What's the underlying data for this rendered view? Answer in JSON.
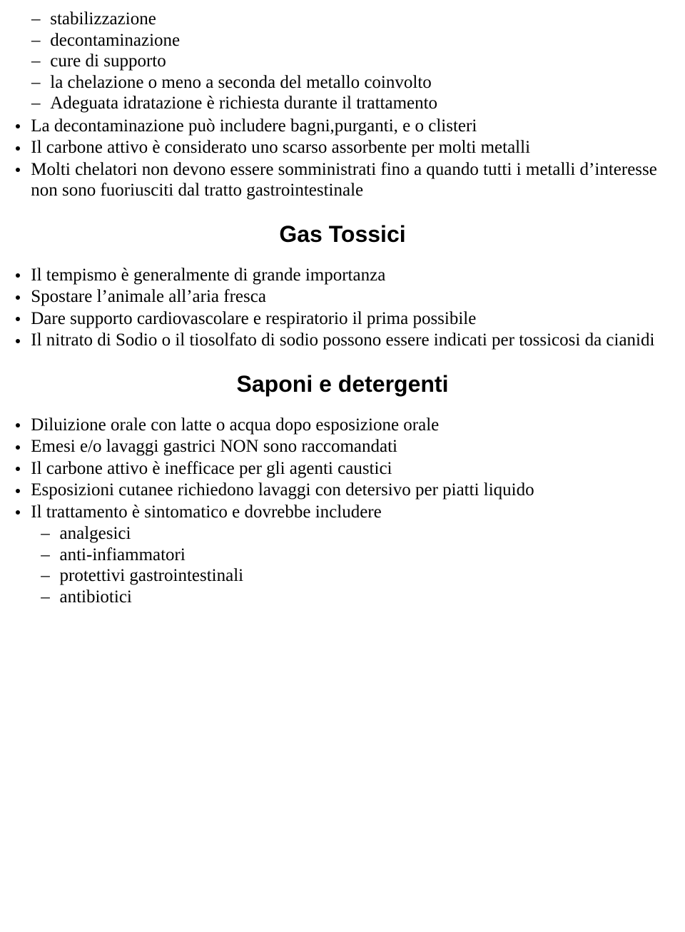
{
  "colors": {
    "background": "#ffffff",
    "text": "#000000",
    "bullet": "#000000"
  },
  "typography": {
    "body_font": "Times New Roman, serif",
    "heading_font": "Arial, Helvetica, sans-serif",
    "body_fontsize_pt": 19,
    "heading_fontsize_pt": 24,
    "heading_weight": "bold",
    "heading_align": "center"
  },
  "intro": {
    "items": [
      "stabilizzazione",
      "decontaminazione",
      "cure di supporto",
      "la chelazione o meno a seconda del metallo coinvolto",
      "Adeguata idratazione è richiesta durante il trattamento"
    ]
  },
  "bullets1": {
    "items": [
      "La decontaminazione può includere bagni,purganti, e o clisteri",
      "Il carbone attivo è considerato uno scarso assorbente per molti metalli",
      "Molti chelatori non devono essere somministrati fino a quando tutti i metalli d’interesse non sono fuoriusciti dal tratto gastrointestinale"
    ]
  },
  "heading_gas": "Gas Tossici",
  "bullets2": {
    "items": [
      "Il tempismo è generalmente di grande importanza",
      "Spostare l’animale all’aria fresca",
      "Dare supporto cardiovascolare e respiratorio il prima possibile",
      "Il nitrato di Sodio o il tiosolfato di sodio possono essere indicati per tossicosi da cianidi"
    ]
  },
  "heading_sap": "Saponi e detergenti",
  "bullets3": {
    "items": [
      "Diluizione orale con latte o acqua dopo esposizione orale",
      "Emesi e/o lavaggi gastrici NON sono raccomandati",
      "Il carbone attivo è inefficace per gli agenti caustici",
      "Esposizioni cutanee richiedono lavaggi con detersivo per piatti liquido",
      "Il trattamento è sintomatico e dovrebbe includere"
    ]
  },
  "sub3": {
    "items": [
      "analgesici",
      "anti-infiammatori",
      "protettivi gastrointestinali",
      "antibiotici"
    ]
  }
}
